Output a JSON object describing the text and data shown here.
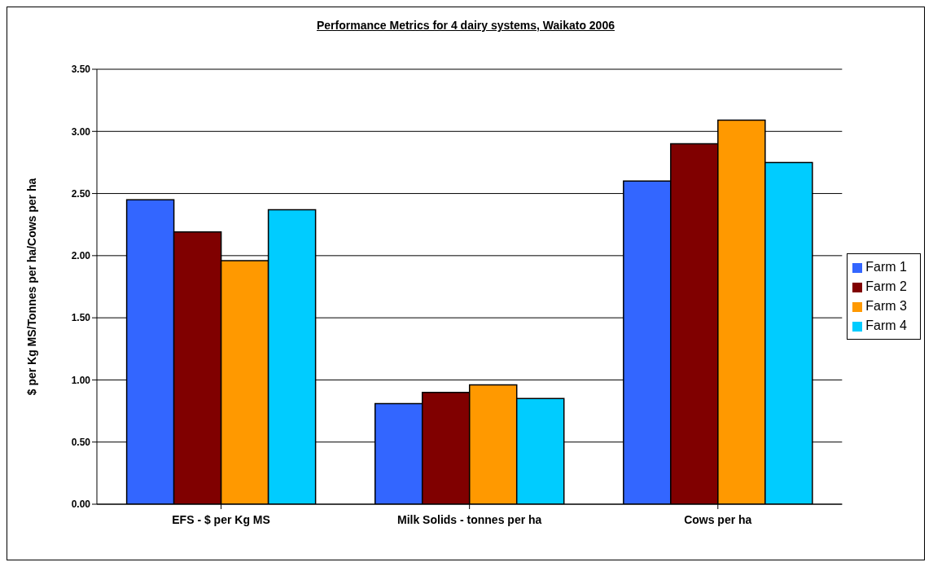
{
  "chart_data": {
    "type": "bar",
    "title": "Performance Metrics for 4 dairy systems, Waikato 2006",
    "ylabel": "$ per Kg MS/Tonnes per ha/Cows per ha",
    "categories": [
      "EFS - $ per Kg MS",
      "Milk Solids - tonnes per ha",
      "Cows per ha"
    ],
    "series": [
      {
        "name": "Farm 1",
        "color": "#3366ff",
        "values": [
          2.45,
          0.81,
          2.6
        ]
      },
      {
        "name": "Farm 2",
        "color": "#800000",
        "values": [
          2.19,
          0.9,
          2.9
        ]
      },
      {
        "name": "Farm 3",
        "color": "#ff9900",
        "values": [
          1.96,
          0.96,
          3.09
        ]
      },
      {
        "name": "Farm 4",
        "color": "#00ccff",
        "values": [
          2.37,
          0.85,
          2.75
        ]
      }
    ],
    "ylim": [
      0,
      3.5
    ],
    "yticks": [
      {
        "value": 0,
        "label": "0.00"
      },
      {
        "value": 0.5,
        "label": "0.50"
      },
      {
        "value": 1,
        "label": "1.00"
      },
      {
        "value": 1.5,
        "label": "1.50"
      },
      {
        "value": 2,
        "label": "2.00"
      },
      {
        "value": 2.5,
        "label": "2.50"
      },
      {
        "value": 3,
        "label": "3.00"
      },
      {
        "value": 3.5,
        "label": "3.50"
      }
    ],
    "grid": "y",
    "legend": "right"
  }
}
